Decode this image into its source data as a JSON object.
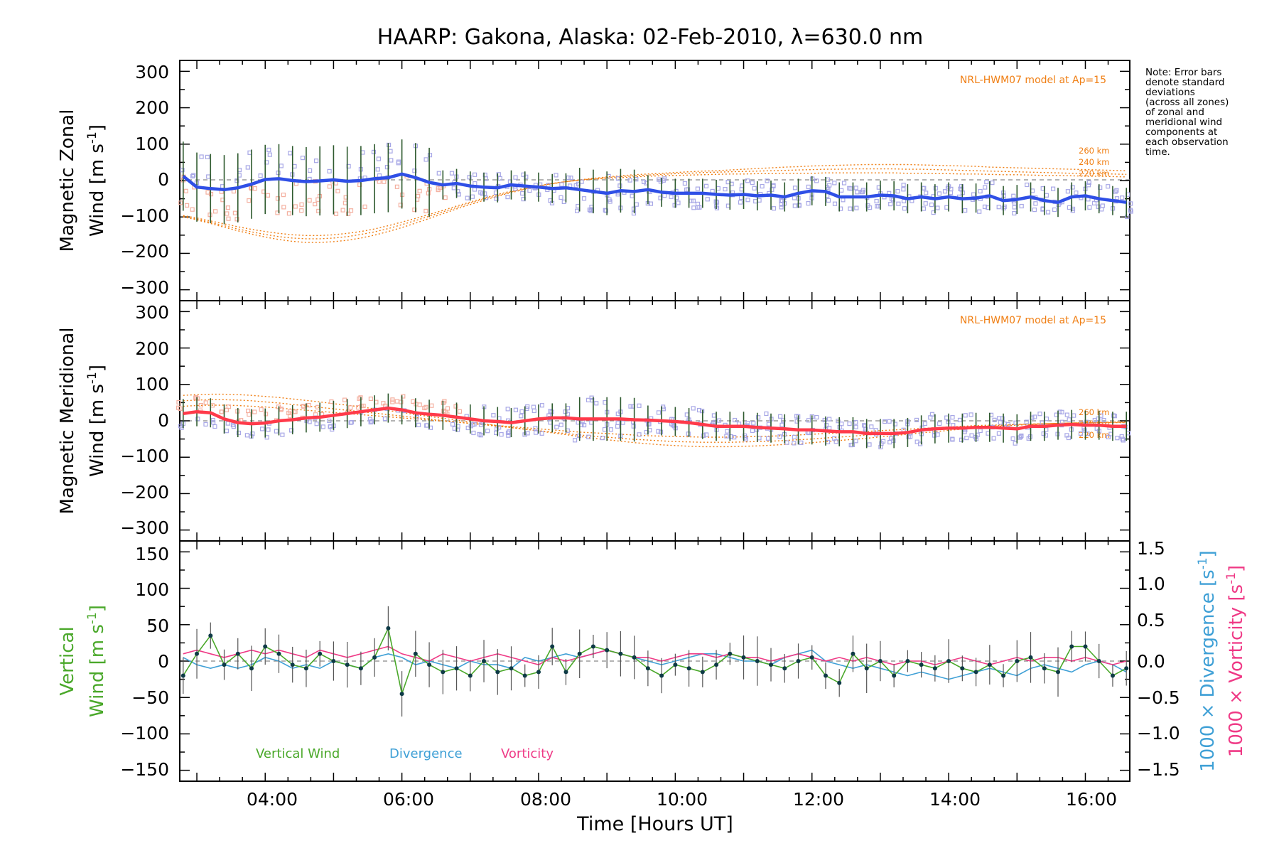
{
  "title": "HAARP: Gakona,  Alaska: 02-Feb-2010, λ=630.0 nm",
  "note": [
    "Note: Error bars",
    "denote standard",
    "deviations",
    "(across all zones)",
    "of zonal and",
    "meridional wind",
    "components at",
    "each observation",
    "time."
  ],
  "xlabel": "Time [Hours UT]",
  "xticks": [
    "04:00",
    "06:00",
    "08:00",
    "10:00",
    "12:00",
    "14:00",
    "16:00"
  ],
  "colors": {
    "zonal": "#2f4fe6",
    "meridional": "#ff3a4a",
    "vertical": "#4aa82a",
    "divergence": "#3fa0d6",
    "vorticity": "#ef3a86",
    "model": "#f07f14",
    "zone_points": "#a8a8e6",
    "zone_points_warm": "#f4b0a0"
  },
  "panels": {
    "zonal": {
      "ylabel_1": "Magnetic Zonal",
      "ylabel_2": "Wind [m s",
      "ylabel_exp": "-1",
      "ylabel_close": "]",
      "model_label": "NRL-HWM07 model at Ap=15",
      "altitudes": [
        "260 km",
        "240 km",
        "220 km"
      ],
      "yticks": [
        "300",
        "200",
        "100",
        "0",
        "−100",
        "−200",
        "−300"
      ]
    },
    "meridional": {
      "ylabel_1": "Magnetic Meridional",
      "ylabel_2": "Wind [m s",
      "ylabel_exp": "-1",
      "ylabel_close": "]",
      "model_label": "NRL-HWM07 model at Ap=15",
      "altitudes": [
        "260 km",
        "240 km",
        "220 km"
      ],
      "yticks": [
        "300",
        "200",
        "100",
        "0",
        "−100",
        "−200",
        "−300"
      ]
    },
    "vertical": {
      "ylabel_1": "Vertical",
      "ylabel_2": "Wind [m s",
      "ylabel_exp": "-1",
      "ylabel_close": "]",
      "yticks": [
        "150",
        "100",
        "50",
        "0",
        "−50",
        "−100",
        "−150"
      ],
      "right_yticks": [
        "1.5",
        "1.0",
        "0.5",
        "0.0",
        "−0.5",
        "−1.0",
        "−1.5"
      ],
      "right_label_div": "1000 × Divergence [s",
      "right_label_vor": "1000 × Vorticity [s",
      "right_label_exp": "-1",
      "right_label_close": "]",
      "legend": [
        "Vertical Wind",
        "Divergence",
        "Vorticity"
      ]
    }
  },
  "chart_data": [
    {
      "type": "line",
      "title": "HAARP: Gakona,  Alaska: 02-Feb-2010, λ=630.0 nm",
      "xlabel": "Time [Hours UT]",
      "ylabel": "Magnetic Zonal Wind [m s-1]",
      "xlim": [
        2.75,
        16.65
      ],
      "ylim": [
        -330,
        330
      ],
      "x": [
        2.8,
        3.0,
        3.2,
        3.4,
        3.6,
        3.8,
        4.0,
        4.2,
        4.4,
        4.6,
        4.8,
        5.0,
        5.2,
        5.4,
        5.6,
        5.8,
        6.0,
        6.2,
        6.4,
        6.6,
        6.8,
        7.0,
        7.2,
        7.4,
        7.6,
        7.8,
        8.0,
        8.2,
        8.4,
        8.6,
        8.8,
        9.0,
        9.2,
        9.4,
        9.6,
        9.8,
        10.0,
        10.2,
        10.4,
        10.6,
        10.8,
        11.0,
        11.2,
        11.4,
        11.6,
        11.8,
        12.0,
        12.2,
        12.4,
        12.6,
        12.8,
        13.0,
        13.2,
        13.4,
        13.6,
        13.8,
        14.0,
        14.2,
        14.4,
        14.6,
        14.8,
        15.0,
        15.2,
        15.4,
        15.6,
        15.8,
        16.0,
        16.2,
        16.4,
        16.6
      ],
      "series": [
        {
          "name": "",
          "values": [
            12,
            -18,
            -22,
            -25,
            -20,
            -10,
            3,
            5,
            0,
            -3,
            -1,
            2,
            -2,
            0,
            5,
            8,
            18,
            8,
            -5,
            -12,
            -8,
            -15,
            -18,
            -20,
            -12,
            -15,
            -18,
            -22,
            -20,
            -25,
            -30,
            -35,
            -28,
            -30,
            -25,
            -32,
            -35,
            -35,
            -35,
            -38,
            -40,
            -38,
            -42,
            -40,
            -45,
            -35,
            -28,
            -30,
            -45,
            -45,
            -45,
            -40,
            -42,
            -50,
            -45,
            -50,
            -45,
            -50,
            -48,
            -42,
            -55,
            -52,
            -45,
            -55,
            -60,
            -45,
            -42,
            -50,
            -55,
            -60
          ]
        },
        {
          "name": "260 km",
          "values": [
            -100,
            -108,
            -118,
            -128,
            -138,
            -147,
            -155,
            -162,
            -167,
            -170,
            -170,
            -168,
            -164,
            -158,
            -150,
            -140,
            -129,
            -117,
            -104,
            -91,
            -78,
            -66,
            -54,
            -43,
            -33,
            -24,
            -16,
            -9,
            -3,
            2,
            6,
            10,
            13,
            16,
            18,
            20,
            22,
            24,
            26,
            27,
            29,
            31,
            33,
            35,
            37,
            38,
            40,
            41,
            42,
            43,
            44,
            44,
            44,
            44,
            43,
            42,
            41,
            40,
            39,
            37,
            36,
            35,
            34,
            33,
            32,
            31,
            30,
            29,
            28,
            27
          ]
        },
        {
          "name": "240 km",
          "values": [
            -98,
            -106,
            -115,
            -124,
            -133,
            -141,
            -148,
            -154,
            -158,
            -160,
            -160,
            -158,
            -154,
            -148,
            -141,
            -132,
            -121,
            -110,
            -98,
            -86,
            -74,
            -62,
            -51,
            -41,
            -31,
            -23,
            -15,
            -8,
            -3,
            1,
            5,
            8,
            11,
            13,
            15,
            17,
            19,
            20,
            22,
            23,
            24,
            25,
            26,
            27,
            28,
            29,
            30,
            31,
            31,
            32,
            32,
            32,
            32,
            31,
            31,
            30,
            29,
            28,
            27,
            26,
            25,
            24,
            23,
            22,
            21,
            20,
            20,
            19,
            18,
            17
          ]
        },
        {
          "name": "220 km",
          "values": [
            -96,
            -103,
            -111,
            -119,
            -127,
            -134,
            -140,
            -145,
            -149,
            -151,
            -151,
            -149,
            -145,
            -140,
            -133,
            -124,
            -114,
            -104,
            -93,
            -82,
            -70,
            -59,
            -48,
            -38,
            -29,
            -21,
            -14,
            -8,
            -3,
            1,
            4,
            6,
            8,
            10,
            12,
            13,
            14,
            15,
            16,
            17,
            18,
            18,
            19,
            19,
            20,
            20,
            20,
            21,
            21,
            21,
            21,
            21,
            21,
            20,
            20,
            19,
            19,
            18,
            18,
            17,
            16,
            16,
            15,
            14,
            14,
            13,
            12,
            12,
            11,
            10
          ]
        }
      ]
    },
    {
      "type": "line",
      "xlabel": "Time [Hours UT]",
      "ylabel": "Magnetic Meridional Wind [m s-1]",
      "xlim": [
        2.75,
        16.65
      ],
      "ylim": [
        -330,
        330
      ],
      "x": [
        2.8,
        3.0,
        3.2,
        3.4,
        3.6,
        3.8,
        4.0,
        4.2,
        4.4,
        4.6,
        4.8,
        5.0,
        5.2,
        5.4,
        5.6,
        5.8,
        6.0,
        6.2,
        6.4,
        6.6,
        6.8,
        7.0,
        7.2,
        7.4,
        7.6,
        7.8,
        8.0,
        8.2,
        8.4,
        8.6,
        8.8,
        9.0,
        9.2,
        9.4,
        9.6,
        9.8,
        10.0,
        10.2,
        10.4,
        10.6,
        10.8,
        11.0,
        11.2,
        11.4,
        11.6,
        11.8,
        12.0,
        12.2,
        12.4,
        12.6,
        12.8,
        13.0,
        13.2,
        13.4,
        13.6,
        13.8,
        14.0,
        14.2,
        14.4,
        14.6,
        14.8,
        15.0,
        15.2,
        15.4,
        15.6,
        15.8,
        16.0,
        16.2,
        16.4,
        16.6
      ],
      "series": [
        {
          "name": "",
          "values": [
            20,
            25,
            22,
            5,
            -5,
            -8,
            -6,
            0,
            3,
            8,
            10,
            15,
            20,
            25,
            30,
            35,
            30,
            22,
            18,
            15,
            10,
            5,
            0,
            -2,
            -5,
            0,
            5,
            8,
            8,
            5,
            5,
            5,
            5,
            3,
            2,
            0,
            -2,
            -5,
            -10,
            -15,
            -15,
            -15,
            -18,
            -20,
            -22,
            -25,
            -25,
            -28,
            -30,
            -30,
            -35,
            -35,
            -35,
            -32,
            -25,
            -22,
            -20,
            -20,
            -18,
            -18,
            -20,
            -22,
            -15,
            -15,
            -12,
            -10,
            -12,
            -12,
            -15,
            -15
          ]
        },
        {
          "name": "260 km",
          "values": [
            70,
            72,
            73,
            73,
            72,
            70,
            67,
            64,
            60,
            56,
            52,
            47,
            43,
            38,
            33,
            28,
            23,
            17,
            12,
            7,
            2,
            -3,
            -8,
            -13,
            -18,
            -23,
            -28,
            -33,
            -38,
            -43,
            -48,
            -52,
            -56,
            -60,
            -63,
            -66,
            -68,
            -70,
            -71,
            -71,
            -71,
            -70,
            -69,
            -67,
            -65,
            -63,
            -60,
            -57,
            -54,
            -51,
            -48,
            -44,
            -41,
            -37,
            -33,
            -30,
            -26,
            -23,
            -20,
            -17,
            -14,
            -12,
            -10,
            -8,
            -7,
            -6,
            -5,
            -4,
            -4,
            -3
          ]
        },
        {
          "name": "240 km",
          "values": [
            55,
            57,
            58,
            58,
            57,
            55,
            52,
            49,
            45,
            41,
            37,
            33,
            29,
            25,
            21,
            17,
            13,
            9,
            5,
            1,
            -3,
            -7,
            -11,
            -15,
            -19,
            -23,
            -27,
            -31,
            -35,
            -39,
            -42,
            -45,
            -48,
            -51,
            -53,
            -55,
            -57,
            -58,
            -59,
            -59,
            -59,
            -58,
            -57,
            -56,
            -54,
            -52,
            -50,
            -47,
            -45,
            -42,
            -39,
            -36,
            -33,
            -30,
            -27,
            -24,
            -21,
            -18,
            -16,
            -14,
            -12,
            -10,
            -9,
            -8,
            -7,
            -6,
            -5,
            -5,
            -4,
            -4
          ]
        },
        {
          "name": "220 km",
          "values": [
            40,
            42,
            43,
            43,
            42,
            40,
            38,
            35,
            32,
            29,
            26,
            23,
            20,
            17,
            14,
            11,
            8,
            5,
            2,
            -1,
            -4,
            -7,
            -10,
            -13,
            -16,
            -19,
            -22,
            -25,
            -28,
            -31,
            -33,
            -35,
            -37,
            -39,
            -41,
            -42,
            -43,
            -44,
            -45,
            -45,
            -45,
            -44,
            -43,
            -42,
            -41,
            -39,
            -37,
            -35,
            -33,
            -31,
            -29,
            -27,
            -25,
            -23,
            -21,
            -19,
            -17,
            -15,
            -13,
            -12,
            -11,
            -10,
            -9,
            -8,
            -7,
            -6,
            -6,
            -5,
            -5,
            -5
          ]
        }
      ]
    },
    {
      "type": "line",
      "xlabel": "Time [Hours UT]",
      "ylabel": "Vertical Wind [m s-1]",
      "xlim": [
        2.75,
        16.65
      ],
      "ylim": [
        -165,
        165
      ],
      "y2lim": [
        -1.65,
        1.65
      ],
      "x": [
        2.8,
        3.0,
        3.2,
        3.4,
        3.6,
        3.8,
        4.0,
        4.2,
        4.4,
        4.6,
        4.8,
        5.0,
        5.2,
        5.4,
        5.6,
        5.8,
        6.0,
        6.2,
        6.4,
        6.6,
        6.8,
        7.0,
        7.2,
        7.4,
        7.6,
        7.8,
        8.0,
        8.2,
        8.4,
        8.6,
        8.8,
        9.0,
        9.2,
        9.4,
        9.6,
        9.8,
        10.0,
        10.2,
        10.4,
        10.6,
        10.8,
        11.0,
        11.2,
        11.4,
        11.6,
        11.8,
        12.0,
        12.2,
        12.4,
        12.6,
        12.8,
        13.0,
        13.2,
        13.4,
        13.6,
        13.8,
        14.0,
        14.2,
        14.4,
        14.6,
        14.8,
        15.0,
        15.2,
        15.4,
        15.6,
        15.8,
        16.0,
        16.2,
        16.4,
        16.6
      ],
      "series": [
        {
          "name": "Vertical Wind",
          "axis": "left",
          "values": [
            -20,
            10,
            35,
            -5,
            10,
            -10,
            20,
            10,
            -5,
            -10,
            10,
            0,
            -5,
            -10,
            5,
            45,
            -45,
            10,
            -5,
            -15,
            -10,
            -20,
            0,
            -15,
            -10,
            -20,
            -15,
            20,
            -15,
            10,
            20,
            15,
            10,
            5,
            -10,
            -20,
            -5,
            -10,
            -15,
            -5,
            10,
            5,
            0,
            -5,
            -10,
            0,
            5,
            -20,
            -30,
            10,
            -10,
            0,
            -20,
            0,
            -5,
            -10,
            0,
            -10,
            -15,
            -5,
            -20,
            0,
            5,
            -10,
            -15,
            20,
            20,
            0,
            -20,
            -10
          ]
        },
        {
          "name": "Divergence",
          "axis": "right",
          "values": [
            0.05,
            -0.05,
            -0.1,
            -0.05,
            -0.1,
            -0.05,
            0.05,
            0.0,
            -0.1,
            -0.05,
            -0.1,
            0.0,
            -0.05,
            -0.1,
            0.05,
            0.1,
            0.05,
            -0.05,
            0.0,
            -0.05,
            -0.1,
            0.0,
            -0.05,
            -0.05,
            -0.1,
            0.05,
            0.0,
            0.05,
            0.1,
            0.05,
            0.1,
            0.15,
            0.1,
            0.05,
            0.0,
            -0.05,
            0.0,
            0.05,
            0.1,
            0.1,
            0.05,
            0.0,
            0.0,
            -0.05,
            0.05,
            0.1,
            0.15,
            0.0,
            -0.05,
            -0.1,
            -0.05,
            -0.1,
            -0.15,
            -0.2,
            -0.15,
            -0.2,
            -0.25,
            -0.2,
            -0.15,
            -0.1,
            -0.15,
            -0.2,
            -0.1,
            -0.05,
            -0.1,
            -0.15,
            -0.05,
            0.0,
            -0.05,
            -0.15
          ]
        },
        {
          "name": "Vorticity",
          "axis": "right",
          "values": [
            0.1,
            0.15,
            0.1,
            0.05,
            0.1,
            0.15,
            0.1,
            0.15,
            0.1,
            0.05,
            0.15,
            0.1,
            0.05,
            0.1,
            0.15,
            0.2,
            0.1,
            0.05,
            0.0,
            0.1,
            0.05,
            0.0,
            0.05,
            0.1,
            0.05,
            0.0,
            -0.05,
            0.05,
            0.0,
            0.05,
            0.1,
            0.15,
            0.1,
            0.05,
            0.05,
            0.0,
            0.05,
            0.1,
            0.1,
            0.05,
            0.1,
            0.05,
            0.05,
            0.0,
            0.05,
            0.1,
            0.05,
            0.0,
            0.05,
            0.0,
            0.05,
            0.0,
            -0.05,
            0.0,
            0.0,
            -0.05,
            0.0,
            0.05,
            0.0,
            -0.05,
            0.0,
            0.05,
            0.0,
            0.05,
            0.05,
            0.0,
            0.05,
            0.0,
            -0.05,
            0.0
          ]
        }
      ]
    }
  ]
}
